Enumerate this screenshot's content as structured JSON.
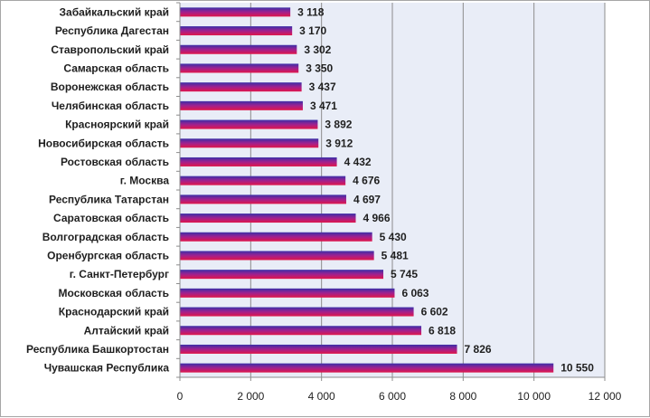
{
  "chart_data": {
    "type": "bar",
    "orientation": "horizontal",
    "title": "",
    "xlabel": "",
    "ylabel": "",
    "xlim": [
      0,
      12000
    ],
    "x_ticks": [
      0,
      2000,
      4000,
      6000,
      8000,
      10000,
      12000
    ],
    "x_tick_labels": [
      "0",
      "2 000",
      "4 000",
      "6 000",
      "8 000",
      "10 000",
      "12 000"
    ],
    "grid": "vertical major gridlines",
    "legend": "none",
    "categories": [
      "Забайкальский край",
      "Республика Дагестан",
      "Ставропольский край",
      "Самарская область",
      "Воронежская область",
      "Челябинская область",
      "Красноярский край",
      "Новосибирская область",
      "Ростовская область",
      "г. Москва",
      "Республика Татарстан",
      "Саратовская область",
      "Волгоградская область",
      "Оренбургская область",
      "г. Санкт-Петербург",
      "Московская область",
      "Краснодарский край",
      "Алтайский край",
      "Республика Башкортостан",
      "Чувашская Республика"
    ],
    "values": [
      3118,
      3170,
      3302,
      3350,
      3437,
      3471,
      3892,
      3912,
      4432,
      4676,
      4697,
      4966,
      5430,
      5481,
      5745,
      6063,
      6602,
      6818,
      7826,
      10550
    ],
    "value_labels": [
      "3 118",
      "3 170",
      "3 302",
      "3 350",
      "3 437",
      "3 471",
      "3 892",
      "3 912",
      "4 432",
      "4 676",
      "4 697",
      "4 966",
      "5 430",
      "5 481",
      "5 745",
      "6 063",
      "6 602",
      "6 818",
      "7 826",
      "10 550"
    ],
    "colors": {
      "bar_top": "#3b2fa8",
      "bar_mid": "#a0208f",
      "bar_bottom": "#e0164a",
      "plot_background": "#e9edf7",
      "gridline": "#8c8c8c",
      "axis": "#8c8c8c"
    }
  }
}
